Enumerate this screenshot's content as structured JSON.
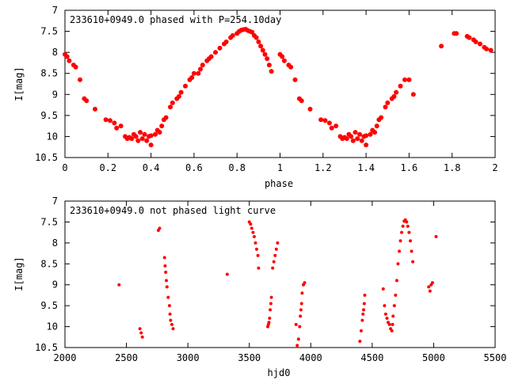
{
  "chart_data": [
    {
      "type": "scatter",
      "title": "233610+0949.0 phased with P=254.10day",
      "xlabel": "phase",
      "ylabel": "I[mag]",
      "xlim": [
        0,
        2
      ],
      "ylim": [
        10.5,
        7
      ],
      "y_inverted": true,
      "xticks": [
        "0",
        "0.2",
        "0.4",
        "0.6",
        "0.8",
        "1",
        "1.2",
        "1.4",
        "1.6",
        "1.8",
        "2"
      ],
      "yticks": [
        "7",
        "7.5",
        "8",
        "8.5",
        "9",
        "9.5",
        "10",
        "10.5"
      ],
      "marker_color": "#ff0000",
      "grid": false,
      "points": [
        [
          0.0,
          8.05
        ],
        [
          0.01,
          8.1
        ],
        [
          0.02,
          8.2
        ],
        [
          0.04,
          8.3
        ],
        [
          0.05,
          8.35
        ],
        [
          0.07,
          8.65
        ],
        [
          0.09,
          9.1
        ],
        [
          0.1,
          9.15
        ],
        [
          0.14,
          9.35
        ],
        [
          0.19,
          9.6
        ],
        [
          0.21,
          9.62
        ],
        [
          0.23,
          9.68
        ],
        [
          0.24,
          9.8
        ],
        [
          0.26,
          9.75
        ],
        [
          0.28,
          10.0
        ],
        [
          0.29,
          10.05
        ],
        [
          0.3,
          10.02
        ],
        [
          0.31,
          10.05
        ],
        [
          0.32,
          9.95
        ],
        [
          0.33,
          10.0
        ],
        [
          0.34,
          10.1
        ],
        [
          0.35,
          9.9
        ],
        [
          0.36,
          10.05
        ],
        [
          0.37,
          9.95
        ],
        [
          0.38,
          10.1
        ],
        [
          0.39,
          10.0
        ],
        [
          0.4,
          10.2
        ],
        [
          0.4,
          9.98
        ],
        [
          0.42,
          9.95
        ],
        [
          0.43,
          9.85
        ],
        [
          0.44,
          9.9
        ],
        [
          0.45,
          9.75
        ],
        [
          0.46,
          9.6
        ],
        [
          0.47,
          9.55
        ],
        [
          0.49,
          9.3
        ],
        [
          0.5,
          9.2
        ],
        [
          0.52,
          9.1
        ],
        [
          0.53,
          9.05
        ],
        [
          0.54,
          8.95
        ],
        [
          0.56,
          8.8
        ],
        [
          0.58,
          8.65
        ],
        [
          0.59,
          8.6
        ],
        [
          0.6,
          8.5
        ],
        [
          0.62,
          8.5
        ],
        [
          0.63,
          8.4
        ],
        [
          0.64,
          8.3
        ],
        [
          0.66,
          8.2
        ],
        [
          0.67,
          8.15
        ],
        [
          0.68,
          8.1
        ],
        [
          0.7,
          8.0
        ],
        [
          0.72,
          7.9
        ],
        [
          0.74,
          7.8
        ],
        [
          0.75,
          7.75
        ],
        [
          0.77,
          7.65
        ],
        [
          0.78,
          7.6
        ],
        [
          0.8,
          7.55
        ],
        [
          0.81,
          7.5
        ],
        [
          0.82,
          7.47
        ],
        [
          0.83,
          7.46
        ],
        [
          0.84,
          7.45
        ],
        [
          0.85,
          7.48
        ],
        [
          0.86,
          7.5
        ],
        [
          0.87,
          7.52
        ],
        [
          0.88,
          7.6
        ],
        [
          0.89,
          7.65
        ],
        [
          0.9,
          7.75
        ],
        [
          0.91,
          7.85
        ],
        [
          0.92,
          7.95
        ],
        [
          0.93,
          8.05
        ],
        [
          0.94,
          8.15
        ],
        [
          0.95,
          8.3
        ],
        [
          0.96,
          8.45
        ],
        [
          1.0,
          8.05
        ],
        [
          1.01,
          8.1
        ],
        [
          1.02,
          8.2
        ],
        [
          1.04,
          8.3
        ],
        [
          1.05,
          8.35
        ],
        [
          1.07,
          8.65
        ],
        [
          1.09,
          9.1
        ],
        [
          1.1,
          9.15
        ],
        [
          1.14,
          9.35
        ],
        [
          1.19,
          9.6
        ],
        [
          1.21,
          9.62
        ],
        [
          1.23,
          9.68
        ],
        [
          1.24,
          9.8
        ],
        [
          1.26,
          9.75
        ],
        [
          1.28,
          10.0
        ],
        [
          1.29,
          10.05
        ],
        [
          1.3,
          10.02
        ],
        [
          1.31,
          10.05
        ],
        [
          1.32,
          9.95
        ],
        [
          1.33,
          10.0
        ],
        [
          1.34,
          10.1
        ],
        [
          1.35,
          9.9
        ],
        [
          1.36,
          10.05
        ],
        [
          1.37,
          9.95
        ],
        [
          1.38,
          10.1
        ],
        [
          1.39,
          10.0
        ],
        [
          1.4,
          10.2
        ],
        [
          1.4,
          9.98
        ],
        [
          1.42,
          9.95
        ],
        [
          1.43,
          9.85
        ],
        [
          1.44,
          9.9
        ],
        [
          1.45,
          9.75
        ],
        [
          1.46,
          9.6
        ],
        [
          1.47,
          9.55
        ],
        [
          1.49,
          9.3
        ],
        [
          1.5,
          9.2
        ],
        [
          1.52,
          9.1
        ],
        [
          1.53,
          9.05
        ],
        [
          1.54,
          8.95
        ],
        [
          1.56,
          8.8
        ],
        [
          1.58,
          8.65
        ],
        [
          1.6,
          8.65
        ],
        [
          1.62,
          9.0
        ],
        [
          1.75,
          7.85
        ],
        [
          1.81,
          7.55
        ],
        [
          1.82,
          7.55
        ],
        [
          1.87,
          7.62
        ],
        [
          1.88,
          7.65
        ],
        [
          1.9,
          7.7
        ],
        [
          1.91,
          7.75
        ],
        [
          1.93,
          7.8
        ],
        [
          1.95,
          7.88
        ],
        [
          1.96,
          7.92
        ],
        [
          1.98,
          7.95
        ]
      ]
    },
    {
      "type": "scatter",
      "title": "233610+0949.0 not phased light curve",
      "xlabel": "hjd0",
      "ylabel": "I[mag]",
      "xlim": [
        2000,
        5500
      ],
      "ylim": [
        10.5,
        7
      ],
      "y_inverted": true,
      "xticks": [
        "2000",
        "2500",
        "3000",
        "3500",
        "4000",
        "4500",
        "5000",
        "5500"
      ],
      "yticks": [
        "7",
        "7.5",
        "8",
        "8.5",
        "9",
        "9.5",
        "10",
        "10.5"
      ],
      "marker_color": "#ff0000",
      "grid": false,
      "points": [
        [
          2440,
          9.0
        ],
        [
          2610,
          10.05
        ],
        [
          2620,
          10.15
        ],
        [
          2630,
          10.25
        ],
        [
          2760,
          7.7
        ],
        [
          2770,
          7.65
        ],
        [
          2810,
          8.35
        ],
        [
          2815,
          8.55
        ],
        [
          2820,
          8.7
        ],
        [
          2825,
          8.9
        ],
        [
          2830,
          9.05
        ],
        [
          2840,
          9.3
        ],
        [
          2850,
          9.5
        ],
        [
          2855,
          9.7
        ],
        [
          2860,
          9.85
        ],
        [
          2870,
          9.95
        ],
        [
          2880,
          10.05
        ],
        [
          3320,
          8.75
        ],
        [
          3500,
          7.5
        ],
        [
          3510,
          7.55
        ],
        [
          3520,
          7.65
        ],
        [
          3530,
          7.75
        ],
        [
          3540,
          7.85
        ],
        [
          3550,
          8.0
        ],
        [
          3560,
          8.15
        ],
        [
          3570,
          8.3
        ],
        [
          3575,
          8.6
        ],
        [
          3650,
          10.0
        ],
        [
          3655,
          9.95
        ],
        [
          3660,
          9.9
        ],
        [
          3665,
          9.8
        ],
        [
          3670,
          9.6
        ],
        [
          3675,
          9.45
        ],
        [
          3680,
          9.3
        ],
        [
          3690,
          8.6
        ],
        [
          3700,
          8.45
        ],
        [
          3710,
          8.3
        ],
        [
          3720,
          8.15
        ],
        [
          3730,
          8.0
        ],
        [
          3880,
          9.95
        ],
        [
          3890,
          10.45
        ],
        [
          3900,
          10.3
        ],
        [
          3910,
          10.0
        ],
        [
          3915,
          9.75
        ],
        [
          3920,
          9.6
        ],
        [
          3925,
          9.45
        ],
        [
          3930,
          9.2
        ],
        [
          3940,
          9.0
        ],
        [
          3950,
          8.95
        ],
        [
          4400,
          10.35
        ],
        [
          4410,
          10.1
        ],
        [
          4420,
          9.85
        ],
        [
          4425,
          9.7
        ],
        [
          4430,
          9.6
        ],
        [
          4435,
          9.45
        ],
        [
          4440,
          9.25
        ],
        [
          4590,
          9.1
        ],
        [
          4600,
          9.5
        ],
        [
          4610,
          9.7
        ],
        [
          4620,
          9.8
        ],
        [
          4630,
          9.9
        ],
        [
          4640,
          9.95
        ],
        [
          4650,
          10.05
        ],
        [
          4660,
          10.1
        ],
        [
          4665,
          9.95
        ],
        [
          4670,
          9.75
        ],
        [
          4680,
          9.5
        ],
        [
          4690,
          9.25
        ],
        [
          4700,
          8.9
        ],
        [
          4710,
          8.5
        ],
        [
          4720,
          8.2
        ],
        [
          4730,
          7.95
        ],
        [
          4740,
          7.75
        ],
        [
          4750,
          7.6
        ],
        [
          4760,
          7.48
        ],
        [
          4770,
          7.45
        ],
        [
          4780,
          7.5
        ],
        [
          4790,
          7.6
        ],
        [
          4800,
          7.75
        ],
        [
          4810,
          7.95
        ],
        [
          4820,
          8.2
        ],
        [
          4830,
          8.45
        ],
        [
          4960,
          9.05
        ],
        [
          4970,
          9.15
        ],
        [
          4980,
          9.0
        ],
        [
          4990,
          8.95
        ],
        [
          5020,
          7.85
        ]
      ]
    }
  ]
}
